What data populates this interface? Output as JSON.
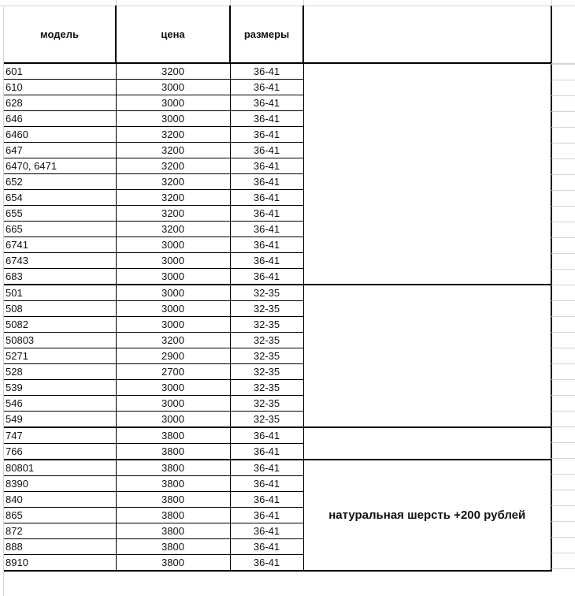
{
  "headers": {
    "model": "модель",
    "price": "цена",
    "sizes": "размеры",
    "note": ""
  },
  "groups": [
    {
      "note": "",
      "rows": [
        [
          "601",
          "3200",
          "36-41"
        ],
        [
          "610",
          "3000",
          "36-41"
        ],
        [
          "628",
          "3000",
          "36-41"
        ],
        [
          "646",
          "3000",
          "36-41"
        ],
        [
          "6460",
          "3200",
          "36-41"
        ],
        [
          "647",
          "3200",
          "36-41"
        ],
        [
          "6470, 6471",
          "3200",
          "36-41"
        ],
        [
          "652",
          "3200",
          "36-41"
        ],
        [
          "654",
          "3200",
          "36-41"
        ],
        [
          "655",
          "3200",
          "36-41"
        ],
        [
          "665",
          "3200",
          "36-41"
        ],
        [
          "6741",
          "3000",
          "36-41"
        ],
        [
          "6743",
          "3000",
          "36-41"
        ],
        [
          "683",
          "3000",
          "36-41"
        ]
      ]
    },
    {
      "note": "",
      "rows": [
        [
          "501",
          "3000",
          "32-35"
        ],
        [
          "508",
          "3000",
          "32-35"
        ],
        [
          "5082",
          "3000",
          "32-35"
        ],
        [
          "50803",
          "3200",
          "32-35"
        ],
        [
          "5271",
          "2900",
          "32-35"
        ],
        [
          "528",
          "2700",
          "32-35"
        ],
        [
          "539",
          "3000",
          "32-35"
        ],
        [
          "546",
          "3000",
          "32-35"
        ],
        [
          "549",
          "3000",
          "32-35"
        ]
      ]
    },
    {
      "note": "",
      "rows": [
        [
          "747",
          "3800",
          "36-41"
        ],
        [
          "766",
          "3800",
          "36-41"
        ]
      ]
    },
    {
      "note": "натуральная шерсть +200 рублей",
      "rows": [
        [
          "80801",
          "3800",
          "36-41"
        ],
        [
          "8390",
          "3800",
          "36-41"
        ],
        [
          "840",
          "3800",
          "36-41"
        ],
        [
          "865",
          "3800",
          "36-41"
        ],
        [
          "872",
          "3800",
          "36-41"
        ],
        [
          "888",
          "3800",
          "36-41"
        ],
        [
          "8910",
          "3800",
          "36-41"
        ]
      ]
    }
  ]
}
